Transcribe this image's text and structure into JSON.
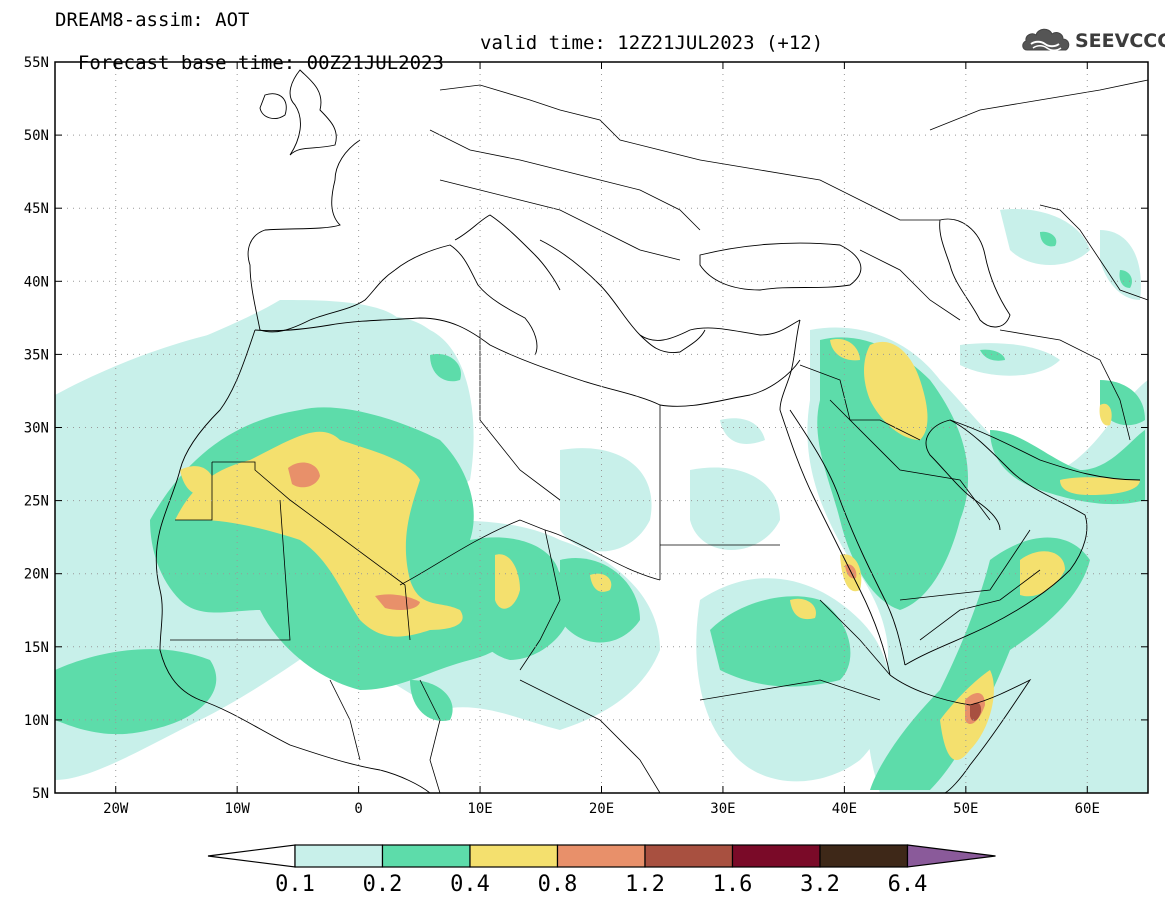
{
  "header": {
    "title": "DREAM8-assim: AOT",
    "forecast_base_time": "Forecast base time: 00Z21JUL2023",
    "valid_time": "valid time: 12Z21JUL2023 (+12)"
  },
  "logo": {
    "text": "SEEVCCC",
    "icon": "cloud-icon"
  },
  "map": {
    "variable": "AOT",
    "lon_range": [
      -25,
      65
    ],
    "lat_range": [
      5,
      55
    ],
    "grid": true,
    "lat_ticks": [
      {
        "value": 55,
        "label": "55N"
      },
      {
        "value": 50,
        "label": "50N"
      },
      {
        "value": 45,
        "label": "45N"
      },
      {
        "value": 40,
        "label": "40N"
      },
      {
        "value": 35,
        "label": "35N"
      },
      {
        "value": 30,
        "label": "30N"
      },
      {
        "value": 25,
        "label": "25N"
      },
      {
        "value": 20,
        "label": "20N"
      },
      {
        "value": 15,
        "label": "15N"
      },
      {
        "value": 10,
        "label": "10N"
      },
      {
        "value": 5,
        "label": "5N"
      }
    ],
    "lon_ticks": [
      {
        "value": -20,
        "label": "20W"
      },
      {
        "value": -10,
        "label": "10W"
      },
      {
        "value": 0,
        "label": "0"
      },
      {
        "value": 10,
        "label": "10E"
      },
      {
        "value": 20,
        "label": "20E"
      },
      {
        "value": 30,
        "label": "30E"
      },
      {
        "value": 40,
        "label": "40E"
      },
      {
        "value": 50,
        "label": "50E"
      },
      {
        "value": 60,
        "label": "60E"
      }
    ]
  },
  "colorbar": {
    "levels": [
      "0.1",
      "0.2",
      "0.4",
      "0.8",
      "1.2",
      "1.6",
      "3.2",
      "6.4"
    ],
    "colors": [
      "#ffffff",
      "#c8f0ea",
      "#5ddcaa",
      "#f4e06e",
      "#e8906a",
      "#a85040",
      "#7a0a28",
      "#3e2818",
      "#8a5a9a"
    ]
  }
}
